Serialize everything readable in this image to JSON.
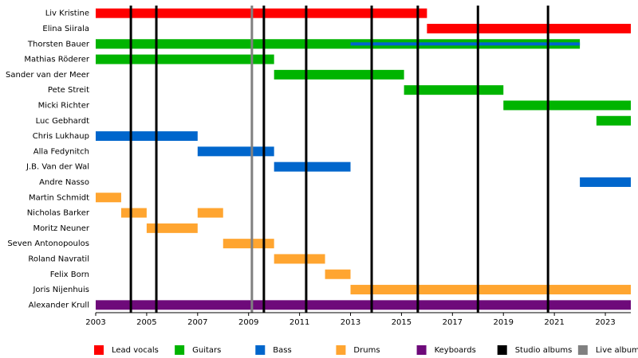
{
  "chart_data": {
    "type": "timeline",
    "xlim": [
      2003,
      2024
    ],
    "xticks": [
      2003,
      2005,
      2007,
      2009,
      2011,
      2013,
      2015,
      2017,
      2019,
      2021,
      2023
    ],
    "legend": [
      {
        "name": "Lead vocals",
        "color": "#ff0000"
      },
      {
        "name": "Guitars",
        "color": "#00b400"
      },
      {
        "name": "Bass",
        "color": "#0066cc"
      },
      {
        "name": "Drums",
        "color": "#ffa530"
      },
      {
        "name": "Keyboards",
        "color": "#6e0a7a"
      },
      {
        "name": "Studio albums",
        "color": "#000000",
        "x": [
          2004.38,
          2005.38,
          2009.6,
          2011.26,
          2013.83,
          2015.64,
          2018.0,
          2020.75
        ]
      },
      {
        "name": "Live albums",
        "color": "#808080",
        "x": [
          2009.13
        ]
      }
    ],
    "members": [
      {
        "name": "Liv Kristine",
        "spans": [
          {
            "start": 2003,
            "end": 2016,
            "role": 0
          }
        ]
      },
      {
        "name": "Elina Siirala",
        "spans": [
          {
            "start": 2016,
            "end": 2024,
            "role": 0
          }
        ]
      },
      {
        "name": "Thorsten Bauer",
        "spans": [
          {
            "start": 2003,
            "end": 2022,
            "role": 1
          },
          {
            "start": 2013,
            "end": 2022,
            "role": 2,
            "thin": true
          }
        ]
      },
      {
        "name": "Mathias Röderer",
        "spans": [
          {
            "start": 2003,
            "end": 2010,
            "role": 1
          }
        ]
      },
      {
        "name": "Sander van der Meer",
        "spans": [
          {
            "start": 2010,
            "end": 2015.1,
            "role": 1
          }
        ]
      },
      {
        "name": "Pete Streit",
        "spans": [
          {
            "start": 2015.1,
            "end": 2019,
            "role": 1
          }
        ]
      },
      {
        "name": "Micki Richter",
        "spans": [
          {
            "start": 2019,
            "end": 2024,
            "role": 1
          }
        ]
      },
      {
        "name": "Luc Gebhardt",
        "spans": [
          {
            "start": 2022.65,
            "end": 2024,
            "role": 1
          }
        ]
      },
      {
        "name": "Chris Lukhaup",
        "spans": [
          {
            "start": 2003,
            "end": 2007,
            "role": 2
          }
        ]
      },
      {
        "name": "Alla Fedynitch",
        "spans": [
          {
            "start": 2007,
            "end": 2010,
            "role": 2
          }
        ]
      },
      {
        "name": "J.B. Van der Wal",
        "spans": [
          {
            "start": 2010,
            "end": 2013,
            "role": 2
          }
        ]
      },
      {
        "name": "Andre Nasso",
        "spans": [
          {
            "start": 2022,
            "end": 2024,
            "role": 2
          }
        ]
      },
      {
        "name": "Martin Schmidt",
        "spans": [
          {
            "start": 2003,
            "end": 2004,
            "role": 3
          }
        ]
      },
      {
        "name": "Nicholas Barker",
        "spans": [
          {
            "start": 2004,
            "end": 2005,
            "role": 3
          },
          {
            "start": 2007,
            "end": 2008,
            "role": 3
          }
        ]
      },
      {
        "name": "Moritz Neuner",
        "spans": [
          {
            "start": 2005,
            "end": 2007,
            "role": 3
          }
        ]
      },
      {
        "name": "Seven Antonopoulos",
        "spans": [
          {
            "start": 2008,
            "end": 2010,
            "role": 3
          }
        ]
      },
      {
        "name": "Roland Navratil",
        "spans": [
          {
            "start": 2010,
            "end": 2012,
            "role": 3
          }
        ]
      },
      {
        "name": "Felix Born",
        "spans": [
          {
            "start": 2012,
            "end": 2013,
            "role": 3
          }
        ]
      },
      {
        "name": "Joris Nijenhuis",
        "spans": [
          {
            "start": 2013,
            "end": 2024,
            "role": 3
          }
        ]
      },
      {
        "name": "Alexander Krull",
        "spans": [
          {
            "start": 2003,
            "end": 2024,
            "role": 4
          }
        ]
      }
    ]
  }
}
